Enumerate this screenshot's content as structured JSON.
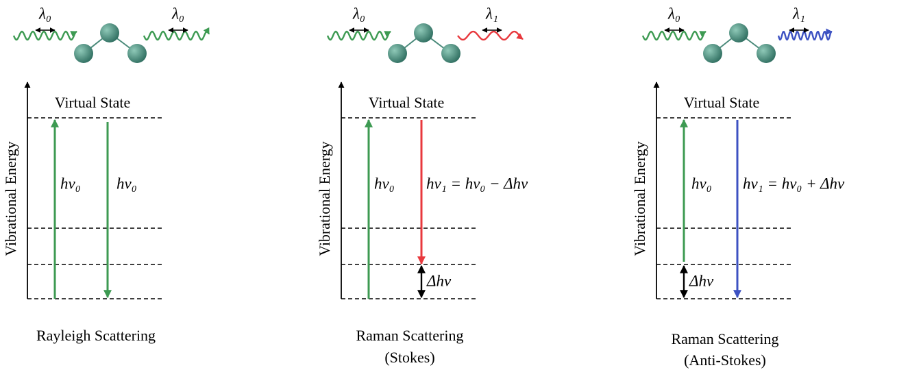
{
  "panels": [
    {
      "incident_label": "λ₀",
      "scattered_label": "λ₀",
      "axis_label": "Vibrational Energy",
      "virtual_state_label": "Virtual State",
      "arrow_labels": [
        "hν₀",
        "hν₀"
      ],
      "caption": [
        "Rayleigh Scattering"
      ]
    },
    {
      "incident_label": "λ₀",
      "scattered_label": "λ₁",
      "axis_label": "Vibrational Energy",
      "virtual_state_label": "Virtual State",
      "arrow_labels": [
        "hν₀",
        "hν₁ = hν₀ − Δhν"
      ],
      "delta_label": "Δhν",
      "caption": [
        "Raman Scattering",
        "(Stokes)"
      ]
    },
    {
      "incident_label": "λ₀",
      "scattered_label": "λ₁",
      "axis_label": "Vibrational Energy",
      "virtual_state_label": "Virtual State",
      "arrow_labels": [
        "hν₀",
        "hν₁ = hν₀ + Δhν"
      ],
      "delta_label": "Δhν",
      "caption": [
        "Raman Scattering",
        "(Anti-Stokes)"
      ]
    }
  ]
}
